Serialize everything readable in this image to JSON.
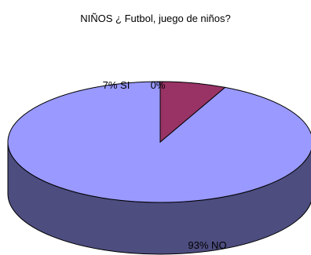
{
  "chart_data": {
    "type": "pie",
    "title": "NIÑOS ¿ Futbol, juego de niños?",
    "slices": [
      {
        "label": "NO",
        "value": 93,
        "display": "93% NO",
        "color": "#9999ff"
      },
      {
        "label": "SI",
        "value": 7,
        "display": "7% SI",
        "color": "#993366"
      },
      {
        "label": "",
        "value": 0,
        "display": "0%",
        "color": "#ffffcc"
      }
    ],
    "style": "3d"
  }
}
